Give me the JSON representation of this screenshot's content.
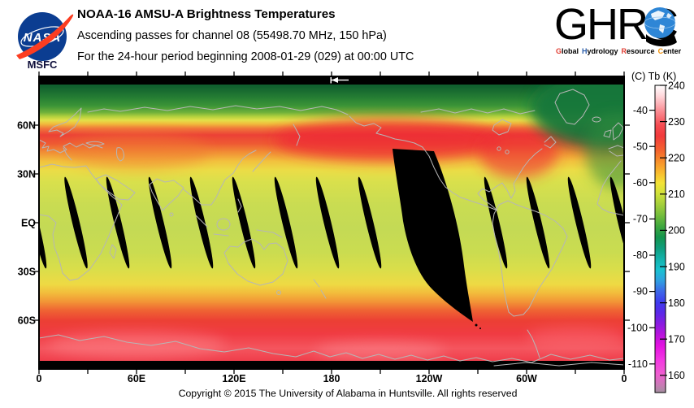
{
  "header": {
    "nasa": {
      "wordmark": "NASA",
      "center": "MSFC",
      "circle_color": "#0b3d91",
      "swoosh_color": "#fc3d21"
    },
    "title": "NOAA-16 AMSU-A Brightness Temperatures",
    "subtitle": "Ascending passes for channel 08 (55498.70 MHz, 150 hPa)",
    "period": "For the 24-hour period beginning 2008-01-29 (029) at 00:00 UTC",
    "ghrc": {
      "name": "GHRC",
      "words": [
        {
          "initial": "G",
          "rest": "lobal",
          "color": "#e03c31"
        },
        {
          "initial": "H",
          "rest": "ydrology",
          "color": "#2a5caa"
        },
        {
          "initial": "R",
          "rest": "esource",
          "color": "#e03c31"
        },
        {
          "initial": "C",
          "rest": "enter",
          "color": "#f28c00"
        }
      ],
      "globe_color": "#2e86d6"
    }
  },
  "map": {
    "lat_labels": [
      "60N",
      "30N",
      "EQ",
      "30S",
      "60S"
    ],
    "lon_labels": [
      "0",
      "60E",
      "120E",
      "180",
      "120W",
      "60W",
      "0"
    ],
    "coastline_color": "#b6b6b6",
    "gap_color": "#000000"
  },
  "colorbar": {
    "header": "(C)  Tb  (K)",
    "kelvin_ticks": [
      "240",
      "230",
      "220",
      "210",
      "200",
      "190",
      "180",
      "170",
      "160"
    ],
    "celsius_ticks": [
      "-40",
      "-50",
      "-60",
      "-70",
      "-80",
      "-90",
      "-100",
      "-110"
    ],
    "kelvin_range": [
      155,
      240
    ],
    "gradient": [
      {
        "k": 240,
        "color": "#ffffff"
      },
      {
        "k": 237,
        "color": "#ffd6da"
      },
      {
        "k": 233,
        "color": "#fb8f96"
      },
      {
        "k": 229,
        "color": "#f64c52"
      },
      {
        "k": 226,
        "color": "#f23a3c"
      },
      {
        "k": 222,
        "color": "#f4632e"
      },
      {
        "k": 219,
        "color": "#f78f2b"
      },
      {
        "k": 216,
        "color": "#f9b92e"
      },
      {
        "k": 213,
        "color": "#f4e336"
      },
      {
        "k": 210,
        "color": "#cfe13a"
      },
      {
        "k": 207,
        "color": "#a3cf3b"
      },
      {
        "k": 204,
        "color": "#74bd3c"
      },
      {
        "k": 201,
        "color": "#3fa73e"
      },
      {
        "k": 198,
        "color": "#14954d"
      },
      {
        "k": 195,
        "color": "#0f9d7c"
      },
      {
        "k": 192,
        "color": "#13b2ab"
      },
      {
        "k": 189,
        "color": "#19c2cf"
      },
      {
        "k": 186,
        "color": "#2fa0e0"
      },
      {
        "k": 183,
        "color": "#3d68e8"
      },
      {
        "k": 180,
        "color": "#3f3cee"
      },
      {
        "k": 177,
        "color": "#5b28e8"
      },
      {
        "k": 174,
        "color": "#8a1be0"
      },
      {
        "k": 171,
        "color": "#b814dc"
      },
      {
        "k": 168,
        "color": "#e312e0"
      },
      {
        "k": 164,
        "color": "#f338e2"
      },
      {
        "k": 160,
        "color": "#ef5fd0"
      },
      {
        "k": 157,
        "color": "#c77cb4"
      },
      {
        "k": 155,
        "color": "#a3909f"
      }
    ]
  },
  "footer": {
    "copyright": "Copyright © 2015 The University of Alabama in Huntsville.  All rights reserved"
  }
}
